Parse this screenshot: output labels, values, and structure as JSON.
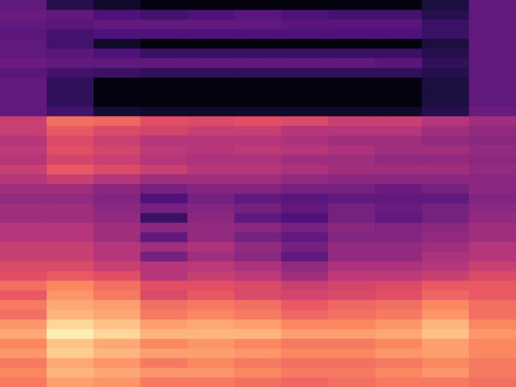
{
  "chart_data": {
    "type": "heatmap",
    "tick_labels": false,
    "color_range": [
      0,
      1
    ],
    "cells": [
      [
        0.3,
        0.15,
        0.08,
        0.02,
        0.02,
        0.02,
        0.02,
        0.02,
        0.02,
        0.12,
        0.3
      ],
      [
        0.32,
        0.3,
        0.25,
        0.22,
        0.25,
        0.28,
        0.25,
        0.22,
        0.22,
        0.15,
        0.3
      ],
      [
        0.3,
        0.28,
        0.3,
        0.3,
        0.3,
        0.3,
        0.28,
        0.28,
        0.28,
        0.2,
        0.3
      ],
      [
        0.28,
        0.22,
        0.25,
        0.25,
        0.25,
        0.25,
        0.25,
        0.25,
        0.25,
        0.2,
        0.3
      ],
      [
        0.3,
        0.22,
        0.08,
        0.02,
        0.02,
        0.02,
        0.02,
        0.02,
        0.02,
        0.12,
        0.3
      ],
      [
        0.3,
        0.28,
        0.25,
        0.2,
        0.2,
        0.2,
        0.2,
        0.2,
        0.2,
        0.15,
        0.3
      ],
      [
        0.32,
        0.3,
        0.3,
        0.3,
        0.3,
        0.3,
        0.3,
        0.3,
        0.28,
        0.18,
        0.3
      ],
      [
        0.28,
        0.22,
        0.2,
        0.18,
        0.18,
        0.18,
        0.18,
        0.18,
        0.18,
        0.15,
        0.3
      ],
      [
        0.3,
        0.18,
        0.02,
        0.02,
        0.02,
        0.02,
        0.02,
        0.02,
        0.02,
        0.12,
        0.3
      ],
      [
        0.3,
        0.18,
        0.02,
        0.02,
        0.02,
        0.02,
        0.02,
        0.02,
        0.02,
        0.12,
        0.3
      ],
      [
        0.3,
        0.18,
        0.02,
        0.02,
        0.02,
        0.02,
        0.02,
        0.02,
        0.02,
        0.12,
        0.3
      ],
      [
        0.3,
        0.22,
        0.1,
        0.08,
        0.08,
        0.08,
        0.08,
        0.08,
        0.08,
        0.15,
        0.32
      ],
      [
        0.55,
        0.7,
        0.68,
        0.62,
        0.6,
        0.62,
        0.6,
        0.55,
        0.55,
        0.5,
        0.45
      ],
      [
        0.55,
        0.65,
        0.6,
        0.58,
        0.55,
        0.55,
        0.5,
        0.5,
        0.5,
        0.45,
        0.42
      ],
      [
        0.5,
        0.6,
        0.55,
        0.5,
        0.5,
        0.5,
        0.48,
        0.45,
        0.45,
        0.42,
        0.4
      ],
      [
        0.52,
        0.62,
        0.58,
        0.52,
        0.5,
        0.52,
        0.5,
        0.48,
        0.45,
        0.45,
        0.42
      ],
      [
        0.5,
        0.58,
        0.55,
        0.5,
        0.48,
        0.48,
        0.45,
        0.45,
        0.42,
        0.42,
        0.4
      ],
      [
        0.55,
        0.65,
        0.6,
        0.55,
        0.5,
        0.5,
        0.48,
        0.45,
        0.45,
        0.45,
        0.42
      ],
      [
        0.5,
        0.55,
        0.5,
        0.45,
        0.45,
        0.45,
        0.42,
        0.4,
        0.4,
        0.4,
        0.4
      ],
      [
        0.45,
        0.45,
        0.4,
        0.35,
        0.38,
        0.38,
        0.35,
        0.35,
        0.32,
        0.35,
        0.4
      ],
      [
        0.42,
        0.42,
        0.38,
        0.25,
        0.35,
        0.3,
        0.28,
        0.3,
        0.3,
        0.3,
        0.38
      ],
      [
        0.45,
        0.45,
        0.4,
        0.35,
        0.38,
        0.35,
        0.3,
        0.35,
        0.32,
        0.35,
        0.4
      ],
      [
        0.45,
        0.45,
        0.42,
        0.2,
        0.4,
        0.3,
        0.25,
        0.35,
        0.3,
        0.35,
        0.42
      ],
      [
        0.5,
        0.5,
        0.45,
        0.4,
        0.42,
        0.4,
        0.35,
        0.4,
        0.38,
        0.4,
        0.45
      ],
      [
        0.5,
        0.5,
        0.45,
        0.3,
        0.42,
        0.35,
        0.3,
        0.38,
        0.38,
        0.42,
        0.45
      ],
      [
        0.55,
        0.55,
        0.5,
        0.45,
        0.48,
        0.42,
        0.35,
        0.42,
        0.42,
        0.45,
        0.5
      ],
      [
        0.55,
        0.55,
        0.5,
        0.35,
        0.45,
        0.4,
        0.3,
        0.42,
        0.42,
        0.48,
        0.5
      ],
      [
        0.6,
        0.6,
        0.55,
        0.5,
        0.52,
        0.48,
        0.42,
        0.48,
        0.48,
        0.5,
        0.55
      ],
      [
        0.62,
        0.65,
        0.62,
        0.5,
        0.55,
        0.52,
        0.45,
        0.52,
        0.52,
        0.55,
        0.6
      ],
      [
        0.7,
        0.75,
        0.7,
        0.62,
        0.62,
        0.6,
        0.55,
        0.58,
        0.6,
        0.65,
        0.65
      ],
      [
        0.65,
        0.78,
        0.72,
        0.6,
        0.65,
        0.6,
        0.58,
        0.6,
        0.62,
        0.68,
        0.65
      ],
      [
        0.72,
        0.82,
        0.8,
        0.7,
        0.72,
        0.7,
        0.65,
        0.68,
        0.7,
        0.75,
        0.7
      ],
      [
        0.7,
        0.85,
        0.82,
        0.72,
        0.75,
        0.72,
        0.68,
        0.7,
        0.72,
        0.78,
        0.7
      ],
      [
        0.78,
        0.92,
        0.88,
        0.8,
        0.82,
        0.8,
        0.75,
        0.75,
        0.78,
        0.85,
        0.75
      ],
      [
        0.82,
        0.97,
        0.92,
        0.85,
        0.85,
        0.85,
        0.8,
        0.8,
        0.82,
        0.88,
        0.78
      ],
      [
        0.75,
        0.88,
        0.82,
        0.75,
        0.78,
        0.75,
        0.72,
        0.72,
        0.75,
        0.8,
        0.75
      ],
      [
        0.78,
        0.9,
        0.85,
        0.8,
        0.8,
        0.78,
        0.75,
        0.75,
        0.78,
        0.8,
        0.75
      ],
      [
        0.72,
        0.82,
        0.78,
        0.72,
        0.75,
        0.72,
        0.7,
        0.7,
        0.72,
        0.75,
        0.72
      ],
      [
        0.75,
        0.85,
        0.82,
        0.78,
        0.78,
        0.75,
        0.72,
        0.72,
        0.75,
        0.78,
        0.72
      ],
      [
        0.72,
        0.8,
        0.78,
        0.72,
        0.72,
        0.7,
        0.68,
        0.7,
        0.72,
        0.72,
        0.7
      ]
    ]
  }
}
